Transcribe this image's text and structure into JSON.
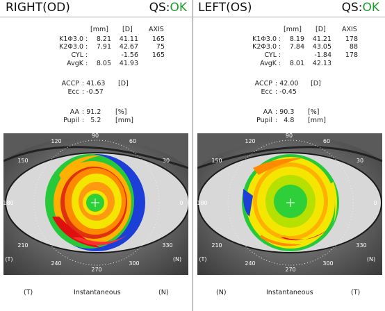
{
  "right": {
    "title": "RIGHT(OD)",
    "qs_label": "QS:",
    "qs_value": "OK",
    "headers": [
      "[mm]",
      "[D]",
      "AXIS"
    ],
    "rows": [
      {
        "label": "K1Φ3.0",
        "sep": ":",
        "mm": "8.21",
        "d": "41.11",
        "axis": "165"
      },
      {
        "label": "K2Φ3.0",
        "sep": ":",
        "mm": "7.91",
        "d": "42.67",
        "axis": "75"
      },
      {
        "label": "CYL",
        "sep": ":",
        "mm": "",
        "d": "-1.56",
        "axis": "165"
      },
      {
        "label": "AvgK",
        "sep": ":",
        "mm": "8.05",
        "d": "41.93",
        "axis": ""
      }
    ],
    "accp_label": "ACCP",
    "accp_value": ": 41.63",
    "accp_unit": "[D]",
    "ecc_label": "Ecc",
    "ecc_value": ": -0.57",
    "aa_label": "AA",
    "aa_value": ": 91.2",
    "aa_unit": "[%]",
    "pupil_label": "Pupil",
    "pupil_value": ":   5.2",
    "pupil_unit": "[mm]",
    "axis_labels": {
      "a90": "90",
      "a60": "60",
      "a120": "120",
      "a30": "30",
      "a150": "150",
      "a0": "0",
      "a180": "180",
      "a210": "210",
      "a330": "330",
      "a240": "240",
      "a300": "300",
      "a270": "270",
      "lower_left": "(T)",
      "lower_right": "(N)"
    },
    "footer": {
      "left": "(T)",
      "center": "Instantaneous",
      "right": "(N)"
    }
  },
  "left": {
    "title": "LEFT(OS)",
    "qs_label": "QS:",
    "qs_value": "OK",
    "headers": [
      "[mm]",
      "[D]",
      "AXIS"
    ],
    "rows": [
      {
        "label": "K1Φ3.0",
        "sep": ":",
        "mm": "8.19",
        "d": "41.21",
        "axis": "178"
      },
      {
        "label": "K2Φ3.0",
        "sep": ":",
        "mm": "7.84",
        "d": "43.05",
        "axis": "88"
      },
      {
        "label": "CYL",
        "sep": ":",
        "mm": "",
        "d": "-1.84",
        "axis": "178"
      },
      {
        "label": "AvgK",
        "sep": ":",
        "mm": "8.01",
        "d": "42.13",
        "axis": ""
      }
    ],
    "accp_label": "ACCP",
    "accp_value": ": 42.00",
    "accp_unit": "[D]",
    "ecc_label": "Ecc",
    "ecc_value": ": -0.45",
    "aa_label": "AA",
    "aa_value": ": 90.3",
    "aa_unit": "[%]",
    "pupil_label": "Pupil",
    "pupil_value": ":   4.8",
    "pupil_unit": "[mm]",
    "axis_labels": {
      "a90": "90",
      "a60": "60",
      "a120": "120",
      "a30": "30",
      "a150": "150",
      "a0": "0",
      "a180": "180",
      "a210": "210",
      "a330": "330",
      "a240": "240",
      "a300": "300",
      "a270": "270",
      "lower_left": "(T)",
      "lower_right": "(N)"
    },
    "footer": {
      "left": "(N)",
      "center": "Instantaneous",
      "right": "(T)"
    }
  },
  "colors": {
    "ok": "#1e9b2e",
    "map_green": "#2fcf3a",
    "map_yellow": "#f4e600",
    "map_orange": "#ff8a00",
    "map_red": "#e01010",
    "map_blue": "#1d3fd8"
  }
}
